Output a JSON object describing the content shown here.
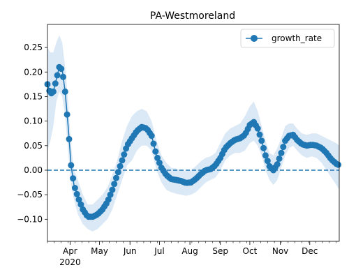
{
  "chart_data": {
    "type": "line",
    "title": "PA-Westmoreland",
    "xlabel": "",
    "ylabel": "",
    "x_tick_labels": [
      "Apr",
      "May",
      "Jun",
      "Jul",
      "Aug",
      "Sep",
      "Oct",
      "Nov",
      "Dec"
    ],
    "x_year_label": "2020",
    "xlim": [
      "2020-03-09",
      "2020-12-31"
    ],
    "ylim": [
      -0.145,
      0.297
    ],
    "y_ticks": [
      -0.1,
      -0.05,
      0.0,
      0.05,
      0.1,
      0.15,
      0.2,
      0.25
    ],
    "y_tick_labels": [
      "−0.10",
      "−0.05",
      "0.00",
      "0.05",
      "0.10",
      "0.15",
      "0.20",
      "0.25"
    ],
    "legend": {
      "position": "top-right",
      "entries": [
        "growth_rate"
      ]
    },
    "reference_line": {
      "y": 0.0,
      "style": "dashed"
    },
    "colors": {
      "series": "#1f77b4",
      "band": "#dbe8f5"
    },
    "series": [
      {
        "name": "growth_rate",
        "points": [
          {
            "x": "2020-03-09",
            "y": 0.175,
            "lo": 0.04,
            "hi": 0.25
          },
          {
            "x": "2020-03-12",
            "y": 0.155,
            "lo": 0.06,
            "hi": 0.24
          },
          {
            "x": "2020-03-15",
            "y": 0.16,
            "lo": 0.09,
            "hi": 0.24
          },
          {
            "x": "2020-03-18",
            "y": 0.185,
            "lo": 0.14,
            "hi": 0.26
          },
          {
            "x": "2020-03-21",
            "y": 0.21,
            "lo": 0.16,
            "hi": 0.275
          },
          {
            "x": "2020-03-24",
            "y": 0.205,
            "lo": 0.15,
            "hi": 0.26
          },
          {
            "x": "2020-03-27",
            "y": 0.16,
            "lo": 0.11,
            "hi": 0.21
          },
          {
            "x": "2020-03-30",
            "y": 0.09,
            "lo": 0.04,
            "hi": 0.14
          },
          {
            "x": "2020-04-02",
            "y": 0.01,
            "lo": -0.03,
            "hi": 0.05
          },
          {
            "x": "2020-04-05",
            "y": -0.03,
            "lo": -0.06,
            "hi": 0.0
          },
          {
            "x": "2020-04-09",
            "y": -0.055,
            "lo": -0.09,
            "hi": -0.02
          },
          {
            "x": "2020-04-14",
            "y": -0.08,
            "lo": -0.11,
            "hi": -0.05
          },
          {
            "x": "2020-04-19",
            "y": -0.095,
            "lo": -0.12,
            "hi": -0.07
          },
          {
            "x": "2020-04-24",
            "y": -0.095,
            "lo": -0.125,
            "hi": -0.07
          },
          {
            "x": "2020-04-29",
            "y": -0.09,
            "lo": -0.12,
            "hi": -0.06
          },
          {
            "x": "2020-05-04",
            "y": -0.08,
            "lo": -0.11,
            "hi": -0.05
          },
          {
            "x": "2020-05-09",
            "y": -0.065,
            "lo": -0.1,
            "hi": -0.035
          },
          {
            "x": "2020-05-14",
            "y": -0.04,
            "lo": -0.08,
            "hi": -0.01
          },
          {
            "x": "2020-05-19",
            "y": -0.01,
            "lo": -0.05,
            "hi": 0.02
          },
          {
            "x": "2020-05-24",
            "y": 0.02,
            "lo": -0.02,
            "hi": 0.06
          },
          {
            "x": "2020-05-29",
            "y": 0.05,
            "lo": 0.01,
            "hi": 0.09
          },
          {
            "x": "2020-06-03",
            "y": 0.065,
            "lo": 0.02,
            "hi": 0.11
          },
          {
            "x": "2020-06-08",
            "y": 0.08,
            "lo": 0.04,
            "hi": 0.12
          },
          {
            "x": "2020-06-13",
            "y": 0.088,
            "lo": 0.05,
            "hi": 0.125
          },
          {
            "x": "2020-06-18",
            "y": 0.085,
            "lo": 0.05,
            "hi": 0.12
          },
          {
            "x": "2020-06-23",
            "y": 0.07,
            "lo": 0.04,
            "hi": 0.1
          },
          {
            "x": "2020-06-28",
            "y": 0.03,
            "lo": 0.0,
            "hi": 0.06
          },
          {
            "x": "2020-07-03",
            "y": 0.005,
            "lo": -0.025,
            "hi": 0.03
          },
          {
            "x": "2020-07-08",
            "y": -0.01,
            "lo": -0.04,
            "hi": 0.015
          },
          {
            "x": "2020-07-13",
            "y": -0.018,
            "lo": -0.045,
            "hi": 0.005
          },
          {
            "x": "2020-07-18",
            "y": -0.02,
            "lo": -0.048,
            "hi": 0.003
          },
          {
            "x": "2020-07-23",
            "y": -0.022,
            "lo": -0.05,
            "hi": 0.0
          },
          {
            "x": "2020-07-28",
            "y": -0.026,
            "lo": -0.052,
            "hi": -0.002
          },
          {
            "x": "2020-08-02",
            "y": -0.025,
            "lo": -0.05,
            "hi": 0.0
          },
          {
            "x": "2020-08-07",
            "y": -0.018,
            "lo": -0.045,
            "hi": 0.008
          },
          {
            "x": "2020-08-12",
            "y": -0.008,
            "lo": -0.035,
            "hi": 0.018
          },
          {
            "x": "2020-08-17",
            "y": 0.0,
            "lo": -0.025,
            "hi": 0.025
          },
          {
            "x": "2020-08-22",
            "y": 0.002,
            "lo": -0.02,
            "hi": 0.028
          },
          {
            "x": "2020-08-27",
            "y": 0.01,
            "lo": -0.015,
            "hi": 0.035
          },
          {
            "x": "2020-09-01",
            "y": 0.025,
            "lo": 0.0,
            "hi": 0.055
          },
          {
            "x": "2020-09-06",
            "y": 0.045,
            "lo": 0.02,
            "hi": 0.075
          },
          {
            "x": "2020-09-11",
            "y": 0.055,
            "lo": 0.03,
            "hi": 0.085
          },
          {
            "x": "2020-09-16",
            "y": 0.062,
            "lo": 0.035,
            "hi": 0.09
          },
          {
            "x": "2020-09-21",
            "y": 0.065,
            "lo": 0.035,
            "hi": 0.095
          },
          {
            "x": "2020-09-26",
            "y": 0.072,
            "lo": 0.04,
            "hi": 0.11
          },
          {
            "x": "2020-10-01",
            "y": 0.092,
            "lo": 0.055,
            "hi": 0.13
          },
          {
            "x": "2020-10-05",
            "y": 0.098,
            "lo": 0.06,
            "hi": 0.14
          },
          {
            "x": "2020-10-09",
            "y": 0.085,
            "lo": 0.05,
            "hi": 0.12
          },
          {
            "x": "2020-10-13",
            "y": 0.06,
            "lo": 0.03,
            "hi": 0.09
          },
          {
            "x": "2020-10-17",
            "y": 0.03,
            "lo": 0.0,
            "hi": 0.06
          },
          {
            "x": "2020-10-21",
            "y": 0.008,
            "lo": -0.02,
            "hi": 0.035
          },
          {
            "x": "2020-10-25",
            "y": 0.0,
            "lo": -0.03,
            "hi": 0.03
          },
          {
            "x": "2020-10-29",
            "y": 0.012,
            "lo": -0.02,
            "hi": 0.045
          },
          {
            "x": "2020-11-02",
            "y": 0.035,
            "lo": 0.005,
            "hi": 0.065
          },
          {
            "x": "2020-11-06",
            "y": 0.06,
            "lo": 0.03,
            "hi": 0.09
          },
          {
            "x": "2020-11-10",
            "y": 0.07,
            "lo": 0.045,
            "hi": 0.095
          },
          {
            "x": "2020-11-14",
            "y": 0.072,
            "lo": 0.05,
            "hi": 0.095
          },
          {
            "x": "2020-11-18",
            "y": 0.062,
            "lo": 0.04,
            "hi": 0.085
          },
          {
            "x": "2020-11-23",
            "y": 0.053,
            "lo": 0.03,
            "hi": 0.075
          },
          {
            "x": "2020-11-28",
            "y": 0.05,
            "lo": 0.025,
            "hi": 0.072
          },
          {
            "x": "2020-12-03",
            "y": 0.052,
            "lo": 0.028,
            "hi": 0.075
          },
          {
            "x": "2020-12-08",
            "y": 0.05,
            "lo": 0.025,
            "hi": 0.075
          },
          {
            "x": "2020-12-13",
            "y": 0.045,
            "lo": 0.015,
            "hi": 0.07
          },
          {
            "x": "2020-12-18",
            "y": 0.035,
            "lo": 0.0,
            "hi": 0.065
          },
          {
            "x": "2020-12-23",
            "y": 0.022,
            "lo": -0.015,
            "hi": 0.06
          },
          {
            "x": "2020-12-28",
            "y": 0.013,
            "lo": -0.03,
            "hi": 0.055
          },
          {
            "x": "2020-12-31",
            "y": 0.01,
            "lo": -0.04,
            "hi": 0.05
          }
        ]
      }
    ]
  }
}
